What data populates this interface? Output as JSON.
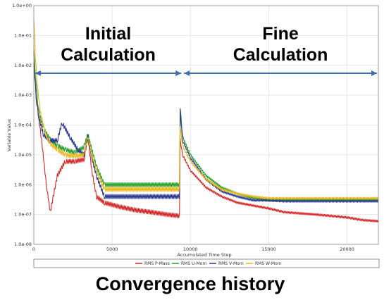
{
  "chart_data": {
    "type": "line",
    "title": "",
    "xlabel": "Accumulated Time Step",
    "ylabel": "Variable Value",
    "yscale": "log",
    "xlim": [
      0,
      22000
    ],
    "ylim": [
      1e-08,
      1
    ],
    "x_ticks": [
      {
        "value": 0,
        "label": "0"
      },
      {
        "value": 5000,
        "label": "5000"
      },
      {
        "value": 10000,
        "label": "10000"
      },
      {
        "value": 15000,
        "label": "15000"
      },
      {
        "value": 20000,
        "label": "20000"
      }
    ],
    "y_ticks": [
      {
        "value": 1,
        "label": "1.0e+00"
      },
      {
        "value": 0.1,
        "label": "1.0e-01"
      },
      {
        "value": 0.01,
        "label": "1.0e-02"
      },
      {
        "value": 0.001,
        "label": "1.0e-03"
      },
      {
        "value": 0.0001,
        "label": "1.0e-04"
      },
      {
        "value": 1e-05,
        "label": "1.0e-05"
      },
      {
        "value": 1e-06,
        "label": "1.0e-06"
      },
      {
        "value": 1e-07,
        "label": "1.0e-07"
      },
      {
        "value": 1e-08,
        "label": "1.0e-08"
      }
    ],
    "grid": true,
    "legend_position": "bottom",
    "series": [
      {
        "name": "RMS P-Mass",
        "color": "#d62728",
        "x": [
          0,
          150,
          500,
          800,
          1050,
          1500,
          2000,
          2600,
          3200,
          3450,
          3700,
          4000,
          4500,
          5500,
          6500,
          7500,
          8500,
          9300,
          9350,
          9500,
          10000,
          11000,
          12000,
          13000,
          14000,
          15000,
          16000,
          18000,
          20000,
          21000,
          22000
        ],
        "y": [
          0.03,
          0.0008,
          3e-05,
          1e-06,
          1.2e-07,
          2e-06,
          6e-06,
          6e-06,
          7e-06,
          4e-05,
          3e-06,
          4e-07,
          2.5e-07,
          1.8e-07,
          1.4e-07,
          1.2e-07,
          1e-07,
          9e-08,
          3e-05,
          1e-05,
          3e-06,
          8e-07,
          4e-07,
          2.5e-07,
          2e-07,
          1.6e-07,
          1.2e-07,
          1e-07,
          8e-08,
          6.5e-08,
          6e-08
        ]
      },
      {
        "name": "RMS U-Mom",
        "color": "#2ca02c",
        "x": [
          0,
          150,
          300,
          600,
          1000,
          1500,
          2000,
          2600,
          3200,
          3450,
          3700,
          4000,
          4500,
          9300,
          9350,
          9500,
          10000,
          11000,
          12000,
          13000,
          14000,
          15000,
          16000,
          18000,
          20000,
          22000
        ],
        "y": [
          0.03,
          0.002,
          0.0003,
          8e-05,
          3.5e-05,
          2e-05,
          1.5e-05,
          1.2e-05,
          1.8e-05,
          5e-05,
          1.5e-05,
          4e-06,
          1e-06,
          1e-06,
          0.0004,
          4e-05,
          1e-05,
          2e-06,
          8e-07,
          5e-07,
          3.5e-07,
          3e-07,
          3e-07,
          3e-07,
          3e-07,
          3e-07
        ]
      },
      {
        "name": "RMS V-Mom",
        "color": "#2b3a8f",
        "x": [
          0,
          150,
          300,
          600,
          1000,
          1500,
          1800,
          2300,
          2800,
          3200,
          3450,
          3700,
          4000,
          4500,
          9300,
          9350,
          9500,
          10000,
          11000,
          12000,
          13000,
          14000,
          15000,
          16000,
          18000,
          20000,
          22000
        ],
        "y": [
          0.01,
          0.001,
          0.0002,
          5e-05,
          3e-05,
          3e-05,
          0.00012,
          4e-05,
          1.5e-05,
          1e-05,
          4e-05,
          8e-06,
          2e-06,
          4e-07,
          4e-07,
          0.0003,
          3e-05,
          8e-06,
          1.5e-06,
          6e-07,
          4e-07,
          3e-07,
          3e-07,
          2.8e-07,
          2.8e-07,
          2.8e-07,
          2.8e-07
        ]
      },
      {
        "name": "RMS W-Mom",
        "color": "#e8b81c",
        "x": [
          0,
          100,
          200,
          400,
          700,
          1000,
          1500,
          2000,
          2600,
          3200,
          3450,
          3700,
          4000,
          4500,
          9300,
          9350,
          9500,
          10000,
          11000,
          12000,
          13000,
          14000,
          15000,
          16000,
          18000,
          20000,
          22000
        ],
        "y": [
          0.4,
          0.02,
          0.003,
          0.0003,
          6e-05,
          2.5e-05,
          1.5e-05,
          1e-05,
          9e-06,
          1e-05,
          4e-05,
          1e-05,
          3e-06,
          7e-07,
          7e-07,
          0.0001,
          2e-05,
          6e-06,
          1.5e-06,
          7e-07,
          5e-07,
          4e-07,
          3.5e-07,
          3.5e-07,
          3.5e-07,
          3.5e-07,
          3.5e-07
        ]
      }
    ],
    "annotations": [
      {
        "lines": [
          "Initial",
          "Calculation"
        ],
        "x_range": [
          0,
          9500
        ]
      },
      {
        "lines": [
          "Fine",
          "Calculation"
        ],
        "x_range": [
          9500,
          22000
        ]
      }
    ],
    "caption": "Convergence history"
  }
}
